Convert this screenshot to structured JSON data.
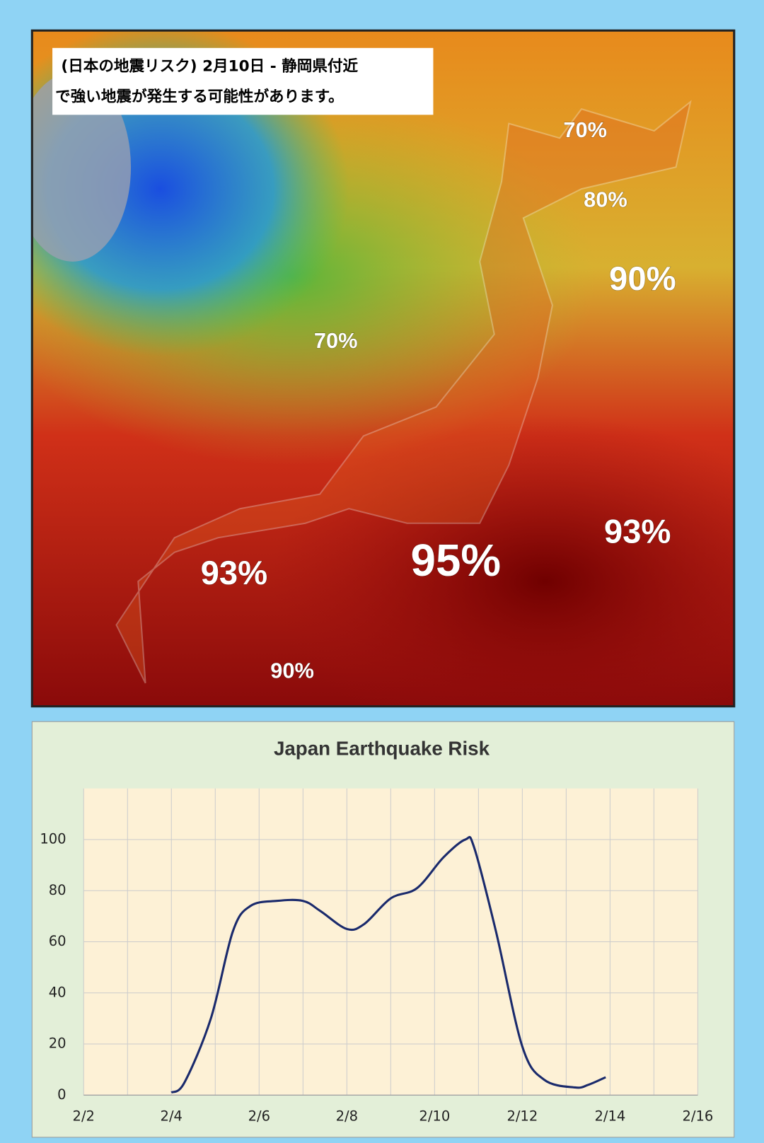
{
  "map": {
    "caption": [
      "(日本の地震リスク)  2月10日 - 静岡県付近",
      "で強い地震が発生する可能性があります。"
    ],
    "labels": [
      "70%",
      "80%",
      "90%",
      "70%",
      "93%",
      "95%",
      "93%",
      "90%"
    ]
  },
  "chart_data": {
    "type": "line",
    "title": "Japan Earthquake Risk",
    "series": [
      {
        "color": "#1a2a6c",
        "x": [
          4.0,
          4.3,
          4.9,
          5.4,
          5.8,
          6.4,
          7.0,
          7.4,
          8.0,
          8.4,
          9.0,
          9.6,
          10.2,
          10.7,
          10.9,
          11.4,
          12.0,
          12.5,
          13.2,
          13.5,
          13.9
        ],
        "values": [
          1,
          5,
          30,
          64,
          74,
          76,
          76,
          72,
          65,
          67,
          77,
          81,
          93,
          100,
          97,
          64,
          19,
          6,
          3,
          4,
          7
        ]
      }
    ],
    "xlim": [
      2,
      16
    ],
    "xticks": [
      {
        "value": 2,
        "label": "2/2"
      },
      {
        "value": 4,
        "label": "2/4"
      },
      {
        "value": 6,
        "label": "2/6"
      },
      {
        "value": 8,
        "label": "2/8"
      },
      {
        "value": 10,
        "label": "2/10"
      },
      {
        "value": 12,
        "label": "2/12"
      },
      {
        "value": 14,
        "label": "2/14"
      },
      {
        "value": 16,
        "label": "2/16"
      }
    ],
    "ylim": [
      0,
      120
    ],
    "yticks": [
      0,
      20,
      40,
      60,
      80,
      100
    ],
    "grid": true
  }
}
